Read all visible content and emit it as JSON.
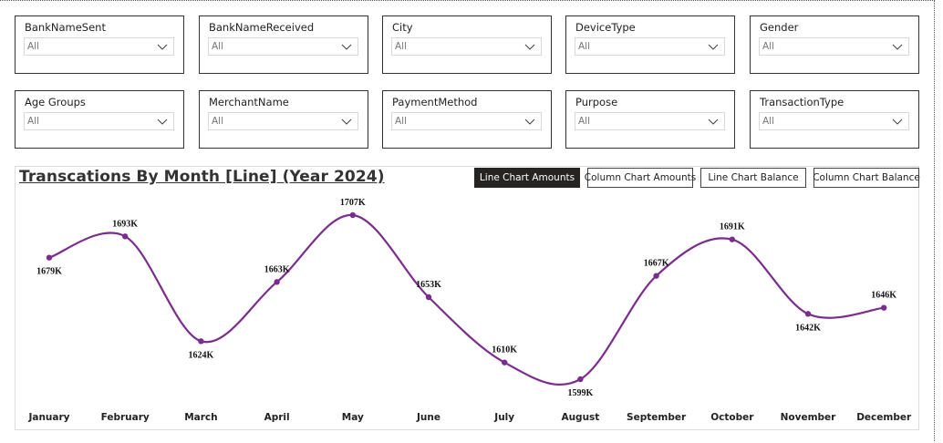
{
  "filters": [
    {
      "label": "BankNameSent",
      "value": "All"
    },
    {
      "label": "BankNameReceived",
      "value": "All"
    },
    {
      "label": "City",
      "value": "All"
    },
    {
      "label": "DeviceType",
      "value": "All"
    },
    {
      "label": "Gender",
      "value": "All"
    },
    {
      "label": "Age Groups",
      "value": "All"
    },
    {
      "label": "MerchantName",
      "value": "All"
    },
    {
      "label": "PaymentMethod",
      "value": "All"
    },
    {
      "label": "Purpose",
      "value": "All"
    },
    {
      "label": "TransactionType",
      "value": "All"
    }
  ],
  "chart": {
    "title": "Transcations By Month [Line] (Year 2024)",
    "buttons": {
      "line_amounts": "Line Chart Amounts",
      "column_amounts": "Column Chart Amounts",
      "line_balance": "Line Chart Balance",
      "column_balance": "Column Chart Balance"
    },
    "active_button": "Line Chart Amounts"
  },
  "chart_data": {
    "type": "line",
    "categories": [
      "January",
      "February",
      "March",
      "April",
      "May",
      "June",
      "July",
      "August",
      "September",
      "October",
      "November",
      "December"
    ],
    "values": [
      1679,
      1693,
      1624,
      1663,
      1707,
      1653,
      1610,
      1599,
      1667,
      1691,
      1642,
      1646
    ],
    "data_labels": [
      "1679K",
      "1693K",
      "1624K",
      "1663K",
      "1707K",
      "1653K",
      "1610K",
      "1599K",
      "1667K",
      "1691K",
      "1642K",
      "1646K"
    ],
    "unit": "K",
    "line_color": "#7B2D8E",
    "grid": false,
    "xlabel": "",
    "ylabel": ""
  }
}
